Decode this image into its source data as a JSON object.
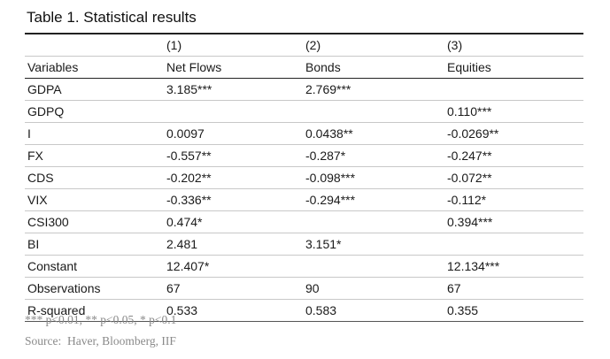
{
  "title": "Table 1. Statistical results",
  "table": {
    "column_numbers": [
      "",
      "(1)",
      "(2)",
      "(3)"
    ],
    "headers": [
      "Variables",
      "Net Flows",
      "Bonds",
      "Equities"
    ],
    "rows": [
      [
        "GDPA",
        "3.185***",
        "2.769***",
        ""
      ],
      [
        "GDPQ",
        "",
        "",
        "0.110***"
      ],
      [
        "I",
        "0.0097",
        "0.0438**",
        "-0.0269**"
      ],
      [
        "FX",
        "-0.557**",
        "-0.287*",
        "-0.247**"
      ],
      [
        "CDS",
        "-0.202**",
        "-0.098***",
        "-0.072**"
      ],
      [
        "VIX",
        "-0.336**",
        "-0.294***",
        "-0.112*"
      ],
      [
        "CSI300",
        "0.474*",
        "",
        "0.394***"
      ],
      [
        "BI",
        "2.481",
        "3.151*",
        ""
      ],
      [
        "Constant",
        "12.407*",
        "",
        "12.134***"
      ],
      [
        "Observations",
        "67",
        "90",
        "67"
      ],
      [
        "R-squared",
        "0.533",
        "0.583",
        "0.355"
      ]
    ]
  },
  "notes": {
    "significance": "*** p<0.01, ** p<0.05, * p<0.1",
    "source": "Source:  Haver, Bloomberg, IIF"
  }
}
